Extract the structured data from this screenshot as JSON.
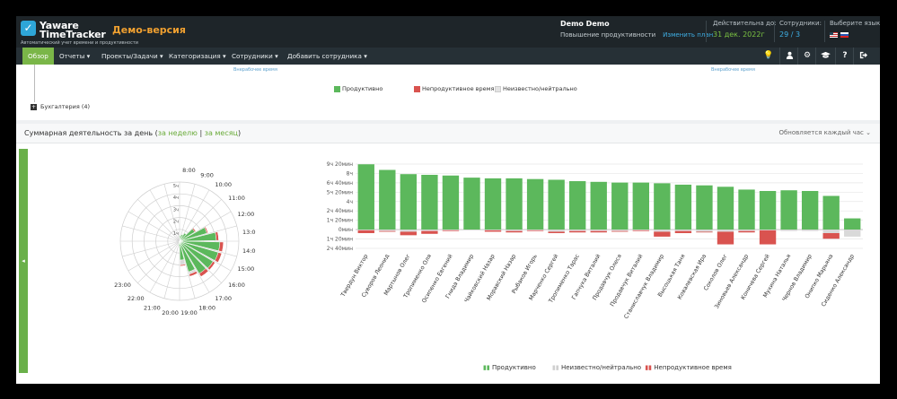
{
  "header": {
    "logo_line1": "Yaware",
    "logo_line2": "TimeTracker",
    "logo_sub": "Автоматический учет времени и продуктивности",
    "demo_label": "Демо-версия",
    "account_name": "Demo Demo",
    "plan_name": "Повышение продуктивности",
    "change_plan": "Изменить план",
    "valid_label": "Действительна до:",
    "valid_value": "31 дек. 2022г",
    "employees_label": "Сотрудники:",
    "employees_value": "29 / 3",
    "lang_label": "Выберите язык:"
  },
  "nav": {
    "items": [
      "Обзор",
      "Отчеты",
      "Проекты/Задачи",
      "Категоризация",
      "Сотрудники",
      "Добавить сотрудника"
    ],
    "icons": [
      "bulb-icon",
      "user-icon",
      "gear-icon",
      "graduation-icon",
      "help-icon",
      "logout-icon"
    ]
  },
  "panel1": {
    "caption_left": "Внерабочее время",
    "caption_right": "Внерабочее время",
    "legend": [
      "Продуктивно",
      "Непродуктивное время",
      "Неизвестно/нейтрально"
    ],
    "tree_item": "Бухгалтерия (4)"
  },
  "panel2": {
    "title": "Суммарная деятельность за день",
    "link_week": "за неделю",
    "link_month": "за месяц",
    "update_note": "Обновляется каждый час",
    "legend": [
      "Продуктивно",
      "Неизвестно/нейтрально",
      "Непродуктивное время"
    ]
  },
  "colors": {
    "productive": "#5cb85c",
    "unproductive": "#d9534f",
    "neutral": "#d9d9d9",
    "accent": "#7ab648"
  },
  "chart_data": [
    {
      "type": "radial-bar",
      "hours": [
        "8:00",
        "9:00",
        "10:00",
        "11:00",
        "12:00",
        "13:00",
        "14:00",
        "15:00",
        "16:00",
        "17:00",
        "18:00",
        "19:00",
        "20:00",
        "21:00",
        "22:00",
        "23:00"
      ],
      "ring_labels": [
        "1ч",
        "2ч",
        "3ч",
        "4ч",
        "5ч"
      ],
      "productive": [
        0.5,
        0.6,
        0.8,
        1.5,
        2.4,
        3.1,
        3.4,
        3.4,
        3.3,
        3.2,
        2.7,
        1.6,
        0.4,
        0.2,
        0.1,
        0.1
      ],
      "unproductive": [
        0,
        0,
        0,
        0.1,
        0.1,
        0.2,
        0.3,
        0.3,
        0.2,
        0.3,
        0.2,
        0.1,
        0,
        0,
        0,
        0
      ],
      "neutral": [
        0,
        0,
        0,
        0,
        0,
        0,
        0,
        0,
        0,
        0,
        0.2,
        0.4,
        0,
        0,
        0,
        0
      ],
      "rmax": 5
    },
    {
      "type": "bar",
      "categories": [
        "Твердун Виктор",
        "Суворов Леонид",
        "Мартынов Олег",
        "Тропименко Оля",
        "Осипенко Евгений",
        "Гнида Владимир",
        "Чайковский Назар",
        "Моравский Назар",
        "Рыбаков Игорь",
        "Марченко Сергей",
        "Тропименко Тарас",
        "Гапчука Виталий",
        "Продавчук Олеся",
        "Продавчук Виталий",
        "Станиславчук Владимир",
        "Высоцькая Таня",
        "Ковалевская Ира",
        "Соколов Олег",
        "Зиновьев Александр",
        "Коничева Сергей",
        "Мухина Наталья",
        "Чернов Владимир",
        "Онипко Марьяна",
        "Сиденко Александр"
      ],
      "series": [
        {
          "name": "Продуктивно",
          "values": [
            9.3,
            8.5,
            7.9,
            7.8,
            7.7,
            7.4,
            7.3,
            7.3,
            7.2,
            7.1,
            6.9,
            6.8,
            6.7,
            6.7,
            6.6,
            6.4,
            6.3,
            6.1,
            5.7,
            5.5,
            5.6,
            5.5,
            4.8,
            1.6
          ]
        },
        {
          "name": "Неизвестно/нейтрально",
          "values": [
            0.1,
            0.2,
            0.3,
            0.2,
            0.1,
            0.1,
            0.1,
            0.2,
            0.1,
            0.3,
            0.2,
            0.2,
            0.2,
            0.1,
            0.3,
            0.2,
            0.3,
            0.3,
            0.2,
            0.1,
            0.2,
            0.2,
            0.5,
            1.0
          ]
        },
        {
          "name": "Непродуктивное время",
          "values": [
            0.4,
            0.1,
            0.5,
            0.4,
            0.1,
            0.0,
            0.2,
            0.2,
            0.1,
            0.2,
            0.2,
            0.2,
            0.1,
            0.1,
            0.7,
            0.3,
            0.1,
            1.8,
            0.2,
            2.0,
            0.0,
            0.0,
            0.8,
            0.0
          ]
        }
      ],
      "y_ticks": [
        "9ч 20мин",
        "8ч",
        "6ч 40мин",
        "5ч 20мин",
        "4ч",
        "2ч 40мин",
        "1ч 20мин",
        "0мин",
        "1ч 20мин",
        "2ч 40мин"
      ],
      "ylim": [
        -2.67,
        9.33
      ]
    }
  ]
}
